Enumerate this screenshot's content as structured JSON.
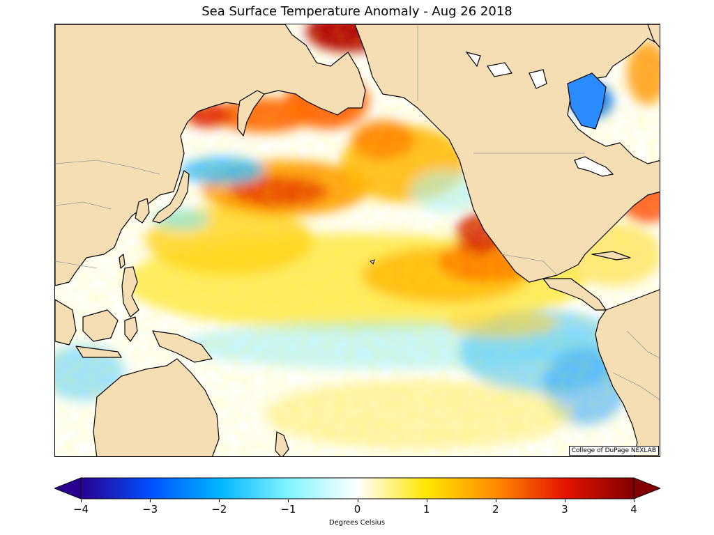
{
  "title": "Sea Surface Temperature Anomaly - Aug 26 2018",
  "credit": "College of DuPage NEXLAB",
  "colorbar": {
    "label": "Degrees Celsius",
    "ticks": [
      "−4",
      "−3",
      "−2",
      "−1",
      "0",
      "1",
      "2",
      "3",
      "4"
    ],
    "min": -4,
    "max": 4,
    "extend": "both",
    "colors": [
      "#2a0090",
      "#0050ff",
      "#00b4ff",
      "#80f4ff",
      "#ffffff",
      "#ffe600",
      "#ff8c00",
      "#e61400",
      "#820000"
    ]
  },
  "map": {
    "land_color": "#f5deb3",
    "ocean_neutral": "#ffffff",
    "coastline_color": "#000000",
    "border_color": "#999999"
  }
}
